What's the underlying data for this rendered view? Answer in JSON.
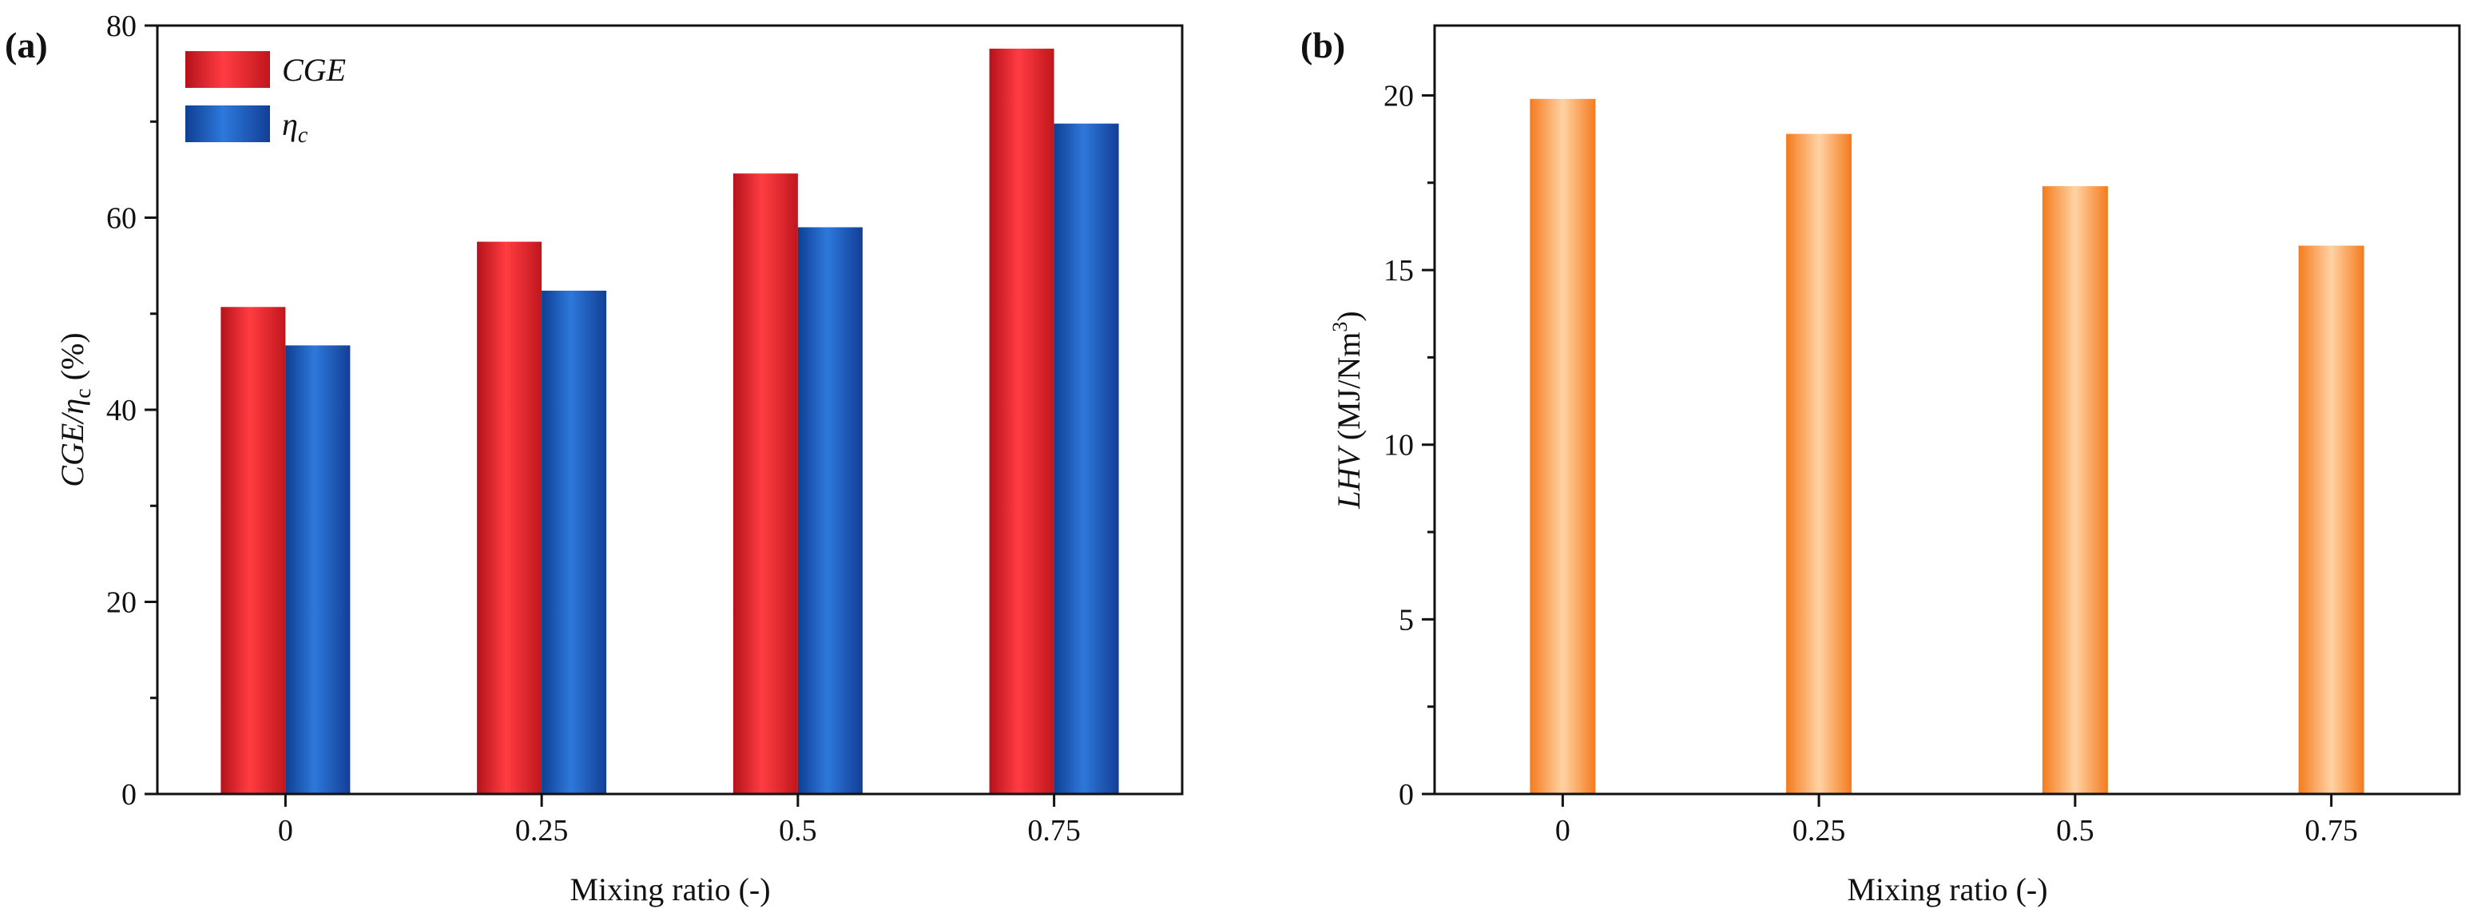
{
  "chart_data": [
    {
      "panel": "(a)",
      "type": "bar",
      "categories": [
        "0",
        "0.25",
        "0.5",
        "0.75"
      ],
      "series": [
        {
          "name": "CGE",
          "legend_main": "CGE",
          "legend_sub": "",
          "color": "#ee2a2f",
          "values": [
            50.7,
            57.5,
            64.6,
            77.6
          ]
        },
        {
          "name": "ηc",
          "legend_main": "η",
          "legend_sub": "c",
          "color": "#1f5fc4",
          "values": [
            46.7,
            52.4,
            59.0,
            69.8
          ]
        }
      ],
      "xlabel": "Mixing ratio (-)",
      "ylabel": {
        "part1": "CGE/",
        "part2": "η",
        "sub": "c",
        "unit": " (%)"
      },
      "ylim": [
        0,
        80
      ],
      "yticks": [
        "0",
        "20",
        "40",
        "60",
        "80"
      ],
      "legend_position": "top-left"
    },
    {
      "panel": "(b)",
      "type": "bar",
      "categories": [
        "0",
        "0.25",
        "0.5",
        "0.75"
      ],
      "series": [
        {
          "name": "LHV",
          "color": "#f7892f",
          "values": [
            19.9,
            18.9,
            17.4,
            15.7
          ]
        }
      ],
      "xlabel": "Mixing ratio (-)",
      "ylabel": {
        "part1": "LHV",
        "unit": " (MJ/Nm",
        "sup": "3",
        "close": ")"
      },
      "ylim": [
        0,
        22
      ],
      "yticks": [
        "0",
        "5",
        "10",
        "15",
        "20"
      ]
    }
  ]
}
